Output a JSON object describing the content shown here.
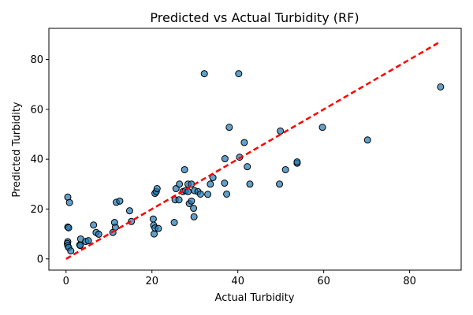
{
  "chart_data": {
    "type": "scatter",
    "title": "Predicted vs Actual Turbidity (RF)",
    "xlabel": "Actual Turbidity",
    "ylabel": "Predicted Turbidity",
    "xlim": [
      -4,
      92
    ],
    "ylim": [
      -4.5,
      92.5
    ],
    "xticks": [
      0,
      20,
      40,
      60,
      80
    ],
    "yticks": [
      0,
      20,
      40,
      60,
      80
    ],
    "grid": false,
    "legend": "none",
    "point_color": "#1f77b4",
    "point_edge_color": "#000000",
    "reference_line": {
      "x": [
        0,
        87.2
      ],
      "y": [
        0,
        87.2
      ],
      "color": "#ff0000",
      "style": "dashed"
    },
    "points": [
      [
        0.4,
        24.8
      ],
      [
        0.8,
        22.6
      ],
      [
        0.4,
        12.8
      ],
      [
        0.6,
        12.5
      ],
      [
        0.4,
        6.9
      ],
      [
        0.3,
        6.2
      ],
      [
        0.4,
        5.3
      ],
      [
        0.6,
        4.6
      ],
      [
        1.1,
        3.2
      ],
      [
        3.4,
        8.0
      ],
      [
        3.2,
        5.6
      ],
      [
        3.3,
        5.4
      ],
      [
        4.6,
        7.0
      ],
      [
        5.2,
        7.3
      ],
      [
        6.4,
        13.6
      ],
      [
        7.0,
        10.6
      ],
      [
        7.6,
        9.9
      ],
      [
        10.9,
        10.6
      ],
      [
        11.3,
        14.6
      ],
      [
        11.5,
        12.7
      ],
      [
        11.7,
        22.7
      ],
      [
        12.5,
        23.2
      ],
      [
        14.8,
        19.3
      ],
      [
        15.2,
        15.0
      ],
      [
        20.3,
        16.0
      ],
      [
        20.4,
        13.5
      ],
      [
        20.5,
        10.0
      ],
      [
        20.7,
        12.4
      ],
      [
        20.7,
        26.3
      ],
      [
        21.0,
        27.0
      ],
      [
        21.2,
        28.2
      ],
      [
        21.5,
        12.2
      ],
      [
        25.2,
        14.6
      ],
      [
        25.4,
        23.7
      ],
      [
        25.6,
        28.2
      ],
      [
        26.3,
        23.7
      ],
      [
        26.4,
        30.0
      ],
      [
        27.2,
        27.0
      ],
      [
        27.6,
        35.8
      ],
      [
        27.8,
        27.4
      ],
      [
        28.4,
        27.0
      ],
      [
        28.4,
        30.0
      ],
      [
        28.7,
        22.2
      ],
      [
        29.2,
        23.2
      ],
      [
        29.2,
        30.0
      ],
      [
        29.7,
        20.3
      ],
      [
        29.8,
        16.9
      ],
      [
        29.9,
        27.4
      ],
      [
        30.7,
        27.0
      ],
      [
        31.3,
        26.0
      ],
      [
        32.2,
        74.3
      ],
      [
        33.0,
        25.9
      ],
      [
        33.6,
        30.0
      ],
      [
        34.2,
        32.6
      ],
      [
        36.9,
        30.4
      ],
      [
        37.0,
        40.2
      ],
      [
        37.4,
        26.0
      ],
      [
        38.0,
        52.8
      ],
      [
        40.2,
        74.3
      ],
      [
        40.4,
        40.8
      ],
      [
        41.5,
        46.7
      ],
      [
        42.2,
        37.0
      ],
      [
        42.8,
        30.0
      ],
      [
        49.7,
        30.0
      ],
      [
        49.9,
        51.3
      ],
      [
        51.1,
        35.8
      ],
      [
        53.8,
        38.4
      ],
      [
        53.8,
        38.9
      ],
      [
        59.7,
        52.8
      ],
      [
        70.2,
        47.7
      ],
      [
        87.2,
        69.0
      ]
    ]
  }
}
